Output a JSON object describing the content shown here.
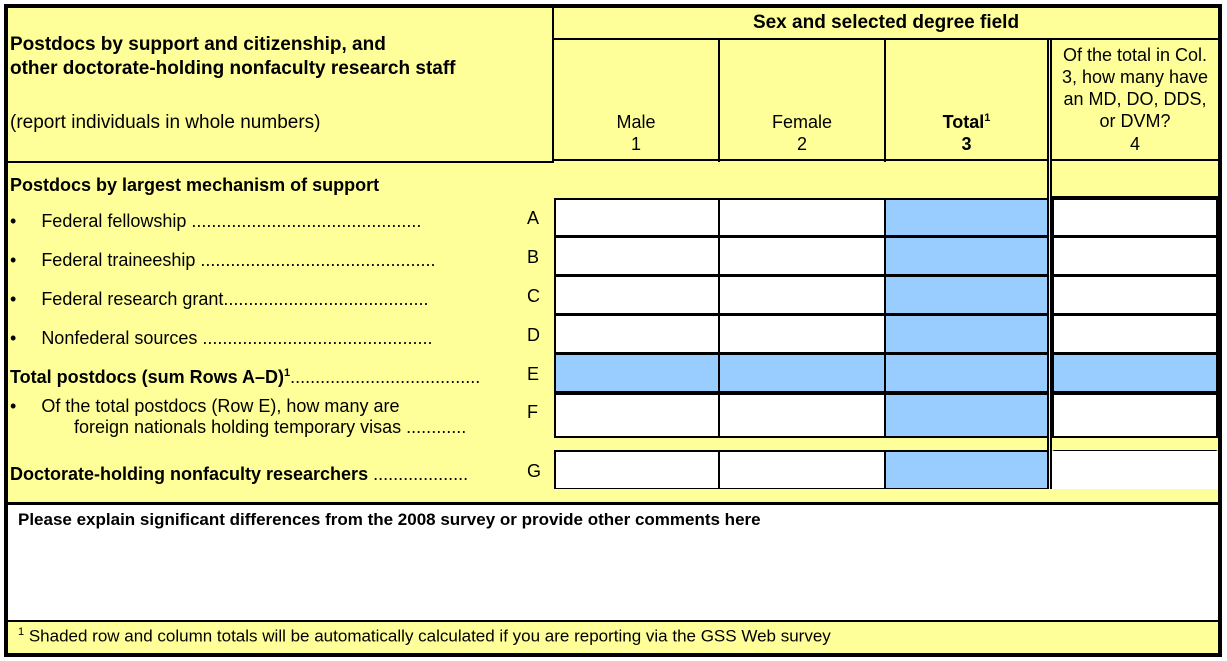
{
  "header": {
    "title_line1": "Postdocs by support and citizenship, and",
    "title_line2": "other doctorate-holding nonfaculty research staff",
    "instruction": "(report individuals in whole numbers)",
    "group_label": "Sex and selected degree field",
    "columns": [
      {
        "label": "Male",
        "number": "1"
      },
      {
        "label": "Female",
        "number": "2"
      },
      {
        "label": "Total",
        "sup": "1",
        "number": "3"
      },
      {
        "label": "Of the total in Col. 3, how many have an MD, DO, DDS, or DVM?",
        "number": "4"
      }
    ]
  },
  "section_label": "Postdocs by largest mechanism of support",
  "rows": [
    {
      "label": "Federal fellowship ..............................................",
      "letter": "A"
    },
    {
      "label": "Federal traineeship ...............................................",
      "letter": "B"
    },
    {
      "label": "Federal research grant.........................................",
      "letter": "C"
    },
    {
      "label": "Nonfederal sources ..............................................",
      "letter": "D"
    },
    {
      "label": "Total postdocs (sum Rows A–D)",
      "sup": "1",
      "dots": "......................................",
      "letter": "E"
    },
    {
      "label_line1": "Of the total postdocs (Row E), how many are",
      "label_line2": "foreign nationals holding temporary visas ............",
      "letter": "F"
    },
    {
      "label": "Doctorate-holding nonfaculty researchers",
      "dots": " ...................",
      "letter": "G"
    }
  ],
  "comments_label": "Please explain significant differences from the 2008 survey or provide other comments here",
  "footnote": {
    "sup": "1",
    "text": " Shaded row and column totals will be automatically calculated if you are reporting via the GSS Web survey"
  },
  "colors": {
    "background": "#ffff99",
    "shaded": "#99ccff",
    "input": "#ffffff"
  }
}
